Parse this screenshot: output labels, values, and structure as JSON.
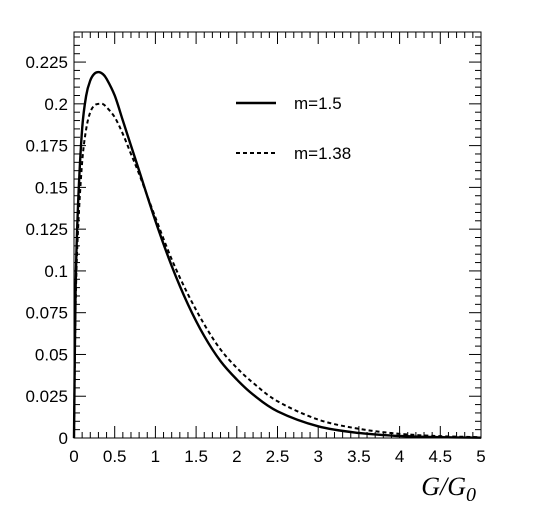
{
  "chart_data": {
    "type": "line",
    "title": "",
    "xlabel": "G/G",
    "xlabel_subscript": "0",
    "ylabel": "",
    "xlim": [
      0,
      5
    ],
    "ylim": [
      0,
      0.243
    ],
    "x_ticks": [
      "0",
      "0.5",
      "1",
      "1.5",
      "2",
      "2.5",
      "3",
      "3.5",
      "4",
      "4.5",
      "5"
    ],
    "y_ticks": [
      "0",
      "0.025",
      "0.05",
      "0.075",
      "0.1",
      "0.125",
      "0.15",
      "0.175",
      "0.2",
      "0.225"
    ],
    "legend_position": "top-right",
    "grid": false,
    "series": [
      {
        "name": "m=1.5",
        "style": "solid",
        "color": "#000000",
        "x": [
          0,
          0.02,
          0.05,
          0.1,
          0.15,
          0.2,
          0.25,
          0.3,
          0.35,
          0.4,
          0.5,
          0.6,
          0.7,
          0.8,
          1.0,
          1.2,
          1.4,
          1.6,
          1.8,
          2.0,
          2.2,
          2.5,
          3.0,
          3.5,
          4.0,
          4.5,
          5.0
        ],
        "y": [
          0,
          0.09,
          0.14,
          0.185,
          0.205,
          0.214,
          0.218,
          0.219,
          0.218,
          0.215,
          0.205,
          0.19,
          0.175,
          0.16,
          0.13,
          0.103,
          0.08,
          0.061,
          0.046,
          0.035,
          0.026,
          0.016,
          0.007,
          0.003,
          0.0012,
          0.0005,
          0.0002
        ]
      },
      {
        "name": "m=1.38",
        "style": "dashed",
        "color": "#000000",
        "x": [
          0,
          0.02,
          0.05,
          0.1,
          0.15,
          0.2,
          0.25,
          0.3,
          0.35,
          0.4,
          0.5,
          0.6,
          0.7,
          0.8,
          1.0,
          1.2,
          1.4,
          1.6,
          1.8,
          2.0,
          2.2,
          2.5,
          3.0,
          3.5,
          4.0,
          4.5,
          5.0
        ],
        "y": [
          0,
          0.08,
          0.125,
          0.165,
          0.185,
          0.195,
          0.199,
          0.2,
          0.2,
          0.198,
          0.192,
          0.182,
          0.17,
          0.158,
          0.132,
          0.107,
          0.086,
          0.068,
          0.053,
          0.042,
          0.033,
          0.022,
          0.011,
          0.0055,
          0.0025,
          0.0011,
          0.0005
        ]
      }
    ]
  }
}
